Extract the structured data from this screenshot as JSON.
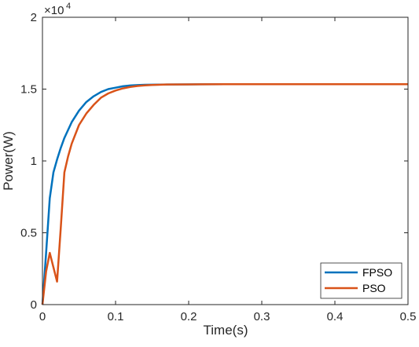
{
  "chart_data": {
    "type": "line",
    "xlabel": "Time(s)",
    "ylabel": "Power(W)",
    "y_exponent_label": {
      "base": "×10",
      "exponent": "4"
    },
    "xlim": [
      0,
      0.5
    ],
    "ylim": [
      0,
      20000
    ],
    "x_ticks": [
      0,
      0.1,
      0.2,
      0.3,
      0.4,
      0.5
    ],
    "x_tick_labels": [
      "0",
      "0.1",
      "0.2",
      "0.3",
      "0.4",
      "0.5"
    ],
    "y_ticks": [
      0,
      5000,
      10000,
      15000,
      20000
    ],
    "y_tick_labels": [
      "0",
      "0.5",
      "1",
      "1.5",
      "2"
    ],
    "grid": false,
    "legend_position": "bottom-right",
    "series": [
      {
        "name": "FPSO",
        "color": "#0072BD",
        "x": [
          0,
          0.005,
          0.01,
          0.015,
          0.02,
          0.025,
          0.03,
          0.04,
          0.05,
          0.06,
          0.07,
          0.08,
          0.09,
          0.1,
          0.11,
          0.12,
          0.13,
          0.14,
          0.15,
          0.17,
          0.2,
          0.25,
          0.3,
          0.4,
          0.5
        ],
        "y": [
          0,
          3600,
          7400,
          9200,
          10100,
          10900,
          11600,
          12700,
          13500,
          14100,
          14500,
          14800,
          15000,
          15100,
          15200,
          15250,
          15280,
          15300,
          15310,
          15320,
          15330,
          15340,
          15340,
          15340,
          15340
        ]
      },
      {
        "name": "PSO",
        "color": "#D95319",
        "x": [
          0,
          0.005,
          0.01,
          0.015,
          0.02,
          0.025,
          0.03,
          0.035,
          0.04,
          0.05,
          0.06,
          0.07,
          0.08,
          0.09,
          0.1,
          0.11,
          0.12,
          0.13,
          0.14,
          0.15,
          0.17,
          0.2,
          0.25,
          0.3,
          0.4,
          0.5
        ],
        "y": [
          0,
          2300,
          3600,
          2600,
          1600,
          5300,
          9200,
          10300,
          11200,
          12500,
          13300,
          13900,
          14400,
          14700,
          14900,
          15050,
          15150,
          15220,
          15260,
          15290,
          15320,
          15330,
          15340,
          15340,
          15340,
          15340
        ]
      }
    ]
  }
}
